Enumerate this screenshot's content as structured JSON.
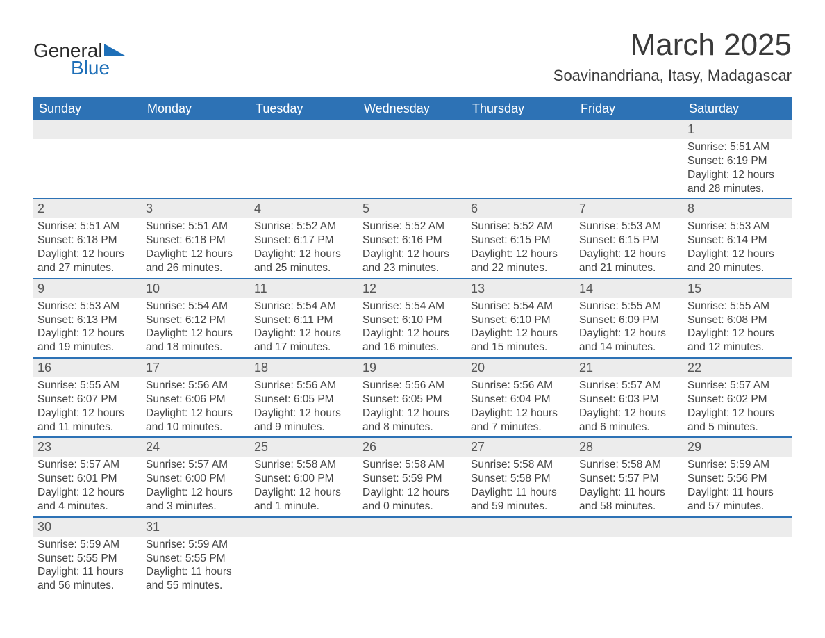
{
  "logo": {
    "word1": "General",
    "word2": "Blue"
  },
  "title": "March 2025",
  "subtitle": "Soavinandriana, Itasy, Madagascar",
  "colors": {
    "header_bg": "#2d72b5",
    "header_fg": "#ffffff",
    "daynum_bg": "#ececec",
    "row_border": "#2d72b5",
    "text": "#3a3a3a",
    "logo_accent": "#1e6fb8",
    "page_bg": "#ffffff"
  },
  "typography": {
    "title_fontsize": 44,
    "subtitle_fontsize": 22,
    "header_fontsize": 18,
    "cell_fontsize": 15.5,
    "font_family": "Arial"
  },
  "layout": {
    "columns": 7,
    "rows_of_weeks": 6
  },
  "days_of_week": [
    "Sunday",
    "Monday",
    "Tuesday",
    "Wednesday",
    "Thursday",
    "Friday",
    "Saturday"
  ],
  "weeks": [
    [
      null,
      null,
      null,
      null,
      null,
      null,
      {
        "n": "1",
        "sunrise": "Sunrise: 5:51 AM",
        "sunset": "Sunset: 6:19 PM",
        "day1": "Daylight: 12 hours",
        "day2": "and 28 minutes."
      }
    ],
    [
      {
        "n": "2",
        "sunrise": "Sunrise: 5:51 AM",
        "sunset": "Sunset: 6:18 PM",
        "day1": "Daylight: 12 hours",
        "day2": "and 27 minutes."
      },
      {
        "n": "3",
        "sunrise": "Sunrise: 5:51 AM",
        "sunset": "Sunset: 6:18 PM",
        "day1": "Daylight: 12 hours",
        "day2": "and 26 minutes."
      },
      {
        "n": "4",
        "sunrise": "Sunrise: 5:52 AM",
        "sunset": "Sunset: 6:17 PM",
        "day1": "Daylight: 12 hours",
        "day2": "and 25 minutes."
      },
      {
        "n": "5",
        "sunrise": "Sunrise: 5:52 AM",
        "sunset": "Sunset: 6:16 PM",
        "day1": "Daylight: 12 hours",
        "day2": "and 23 minutes."
      },
      {
        "n": "6",
        "sunrise": "Sunrise: 5:52 AM",
        "sunset": "Sunset: 6:15 PM",
        "day1": "Daylight: 12 hours",
        "day2": "and 22 minutes."
      },
      {
        "n": "7",
        "sunrise": "Sunrise: 5:53 AM",
        "sunset": "Sunset: 6:15 PM",
        "day1": "Daylight: 12 hours",
        "day2": "and 21 minutes."
      },
      {
        "n": "8",
        "sunrise": "Sunrise: 5:53 AM",
        "sunset": "Sunset: 6:14 PM",
        "day1": "Daylight: 12 hours",
        "day2": "and 20 minutes."
      }
    ],
    [
      {
        "n": "9",
        "sunrise": "Sunrise: 5:53 AM",
        "sunset": "Sunset: 6:13 PM",
        "day1": "Daylight: 12 hours",
        "day2": "and 19 minutes."
      },
      {
        "n": "10",
        "sunrise": "Sunrise: 5:54 AM",
        "sunset": "Sunset: 6:12 PM",
        "day1": "Daylight: 12 hours",
        "day2": "and 18 minutes."
      },
      {
        "n": "11",
        "sunrise": "Sunrise: 5:54 AM",
        "sunset": "Sunset: 6:11 PM",
        "day1": "Daylight: 12 hours",
        "day2": "and 17 minutes."
      },
      {
        "n": "12",
        "sunrise": "Sunrise: 5:54 AM",
        "sunset": "Sunset: 6:10 PM",
        "day1": "Daylight: 12 hours",
        "day2": "and 16 minutes."
      },
      {
        "n": "13",
        "sunrise": "Sunrise: 5:54 AM",
        "sunset": "Sunset: 6:10 PM",
        "day1": "Daylight: 12 hours",
        "day2": "and 15 minutes."
      },
      {
        "n": "14",
        "sunrise": "Sunrise: 5:55 AM",
        "sunset": "Sunset: 6:09 PM",
        "day1": "Daylight: 12 hours",
        "day2": "and 14 minutes."
      },
      {
        "n": "15",
        "sunrise": "Sunrise: 5:55 AM",
        "sunset": "Sunset: 6:08 PM",
        "day1": "Daylight: 12 hours",
        "day2": "and 12 minutes."
      }
    ],
    [
      {
        "n": "16",
        "sunrise": "Sunrise: 5:55 AM",
        "sunset": "Sunset: 6:07 PM",
        "day1": "Daylight: 12 hours",
        "day2": "and 11 minutes."
      },
      {
        "n": "17",
        "sunrise": "Sunrise: 5:56 AM",
        "sunset": "Sunset: 6:06 PM",
        "day1": "Daylight: 12 hours",
        "day2": "and 10 minutes."
      },
      {
        "n": "18",
        "sunrise": "Sunrise: 5:56 AM",
        "sunset": "Sunset: 6:05 PM",
        "day1": "Daylight: 12 hours",
        "day2": "and 9 minutes."
      },
      {
        "n": "19",
        "sunrise": "Sunrise: 5:56 AM",
        "sunset": "Sunset: 6:05 PM",
        "day1": "Daylight: 12 hours",
        "day2": "and 8 minutes."
      },
      {
        "n": "20",
        "sunrise": "Sunrise: 5:56 AM",
        "sunset": "Sunset: 6:04 PM",
        "day1": "Daylight: 12 hours",
        "day2": "and 7 minutes."
      },
      {
        "n": "21",
        "sunrise": "Sunrise: 5:57 AM",
        "sunset": "Sunset: 6:03 PM",
        "day1": "Daylight: 12 hours",
        "day2": "and 6 minutes."
      },
      {
        "n": "22",
        "sunrise": "Sunrise: 5:57 AM",
        "sunset": "Sunset: 6:02 PM",
        "day1": "Daylight: 12 hours",
        "day2": "and 5 minutes."
      }
    ],
    [
      {
        "n": "23",
        "sunrise": "Sunrise: 5:57 AM",
        "sunset": "Sunset: 6:01 PM",
        "day1": "Daylight: 12 hours",
        "day2": "and 4 minutes."
      },
      {
        "n": "24",
        "sunrise": "Sunrise: 5:57 AM",
        "sunset": "Sunset: 6:00 PM",
        "day1": "Daylight: 12 hours",
        "day2": "and 3 minutes."
      },
      {
        "n": "25",
        "sunrise": "Sunrise: 5:58 AM",
        "sunset": "Sunset: 6:00 PM",
        "day1": "Daylight: 12 hours",
        "day2": "and 1 minute."
      },
      {
        "n": "26",
        "sunrise": "Sunrise: 5:58 AM",
        "sunset": "Sunset: 5:59 PM",
        "day1": "Daylight: 12 hours",
        "day2": "and 0 minutes."
      },
      {
        "n": "27",
        "sunrise": "Sunrise: 5:58 AM",
        "sunset": "Sunset: 5:58 PM",
        "day1": "Daylight: 11 hours",
        "day2": "and 59 minutes."
      },
      {
        "n": "28",
        "sunrise": "Sunrise: 5:58 AM",
        "sunset": "Sunset: 5:57 PM",
        "day1": "Daylight: 11 hours",
        "day2": "and 58 minutes."
      },
      {
        "n": "29",
        "sunrise": "Sunrise: 5:59 AM",
        "sunset": "Sunset: 5:56 PM",
        "day1": "Daylight: 11 hours",
        "day2": "and 57 minutes."
      }
    ],
    [
      {
        "n": "30",
        "sunrise": "Sunrise: 5:59 AM",
        "sunset": "Sunset: 5:55 PM",
        "day1": "Daylight: 11 hours",
        "day2": "and 56 minutes."
      },
      {
        "n": "31",
        "sunrise": "Sunrise: 5:59 AM",
        "sunset": "Sunset: 5:55 PM",
        "day1": "Daylight: 11 hours",
        "day2": "and 55 minutes."
      },
      null,
      null,
      null,
      null,
      null
    ]
  ]
}
